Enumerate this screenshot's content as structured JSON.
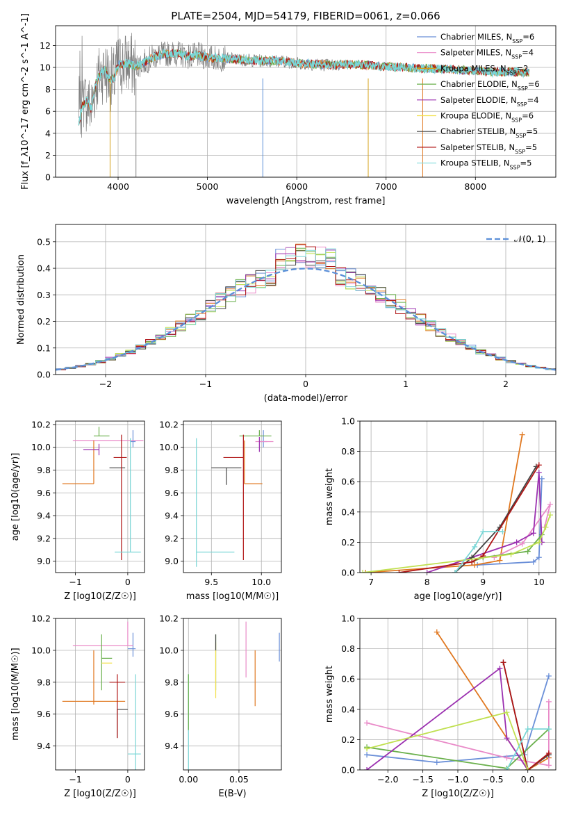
{
  "figure": {
    "title": "PLATE=2504, MJD=54179, FIBERID=0061, z=0.066"
  },
  "colors": {
    "Chabrier MILES": "#6a8fd8",
    "Salpeter MILES": "#e98ac8",
    "Kroupa MILES": "#d4a017",
    "Chabrier ELODIE": "#6ab04c",
    "Salpeter ELODIE": "#9b30b0",
    "Kroupa ELODIE": "#f2e04a",
    "Chabrier STELIB": "#444444",
    "Salpeter STELIB": "#b01515",
    "Kroupa STELIB": "#8fe0e0",
    "orange": "#e07820",
    "lime": "#c0e050",
    "data": "#808080",
    "cyan": "#7ad6d6",
    "gauss": "#5b8fd8"
  },
  "chart_data": [
    {
      "id": "spectrum",
      "type": "line",
      "xlabel": "wavelength [Angstrom, rest frame]",
      "ylabel": "Flux [f_λ10^-17 erg cm^-2 s^-1 A^-1]",
      "xlim": [
        3300,
        8900
      ],
      "ylim": [
        0,
        13.8
      ],
      "xticks": [
        4000,
        5000,
        6000,
        7000,
        8000
      ],
      "yticks": [
        0,
        2,
        4,
        6,
        8,
        10,
        12
      ],
      "legend_position": "right",
      "legend": [
        {
          "name": "Chabrier MILES",
          "nssp": "6"
        },
        {
          "name": "Salpeter MILES",
          "nssp": "4"
        },
        {
          "name": "Kroupa MILES",
          "nssp": "2"
        },
        {
          "name": "Chabrier ELODIE",
          "nssp": "6"
        },
        {
          "name": "Salpeter ELODIE",
          "nssp": "4"
        },
        {
          "name": "Kroupa ELODIE",
          "nssp": "6"
        },
        {
          "name": "Chabrier STELIB",
          "nssp": "5"
        },
        {
          "name": "Salpeter STELIB",
          "nssp": "5"
        },
        {
          "name": "Kroupa STELIB",
          "nssp": "5"
        }
      ],
      "continuum": {
        "x": [
          3560,
          3600,
          3650,
          3700,
          3750,
          3800,
          3850,
          3900,
          3950,
          4000,
          4100,
          4200,
          4300,
          4400,
          4500,
          4600,
          4700,
          4800,
          4900,
          5000,
          5200,
          5400,
          5600,
          5800,
          6000,
          6200,
          6400,
          6600,
          6800,
          7000,
          7200,
          7400,
          7600,
          7800,
          8000,
          8200,
          8400,
          8600
        ],
        "y": [
          4.8,
          6.5,
          7.0,
          6.2,
          8.5,
          9.4,
          9.8,
          9.0,
          8.9,
          10.2,
          10.4,
          10.1,
          10.5,
          11.0,
          11.2,
          11.3,
          11.2,
          11.0,
          11.1,
          10.9,
          10.8,
          10.7,
          10.6,
          10.6,
          10.4,
          10.3,
          10.2,
          10.3,
          10.2,
          10.1,
          10.0,
          9.9,
          9.9,
          9.8,
          9.7,
          9.6,
          9.6,
          9.5
        ]
      }
    },
    {
      "id": "residuals",
      "type": "line",
      "xlabel": "(data-model)/error",
      "ylabel": "Normed distribution",
      "xlim": [
        -2.5,
        2.5
      ],
      "ylim": [
        0,
        0.565
      ],
      "xticks": [
        -2,
        -1,
        0,
        1,
        2
      ],
      "yticks": [
        0.0,
        0.1,
        0.2,
        0.3,
        0.4,
        0.5
      ],
      "legend_position": "top-right",
      "gauss_label": "𝒩(0, 1)",
      "bin_width": 0.1,
      "bin_start": -2.5
    },
    {
      "id": "age-vs-z",
      "type": "scatter",
      "xlabel": "Z [log10(Z/Z☉)]",
      "ylabel": "age  [log10(age/yr)]",
      "xlim": [
        -1.38,
        0.32
      ],
      "ylim": [
        8.9,
        10.23
      ],
      "xticks": [
        -1,
        0
      ],
      "yticks": [
        9.0,
        9.2,
        9.4,
        9.6,
        9.8,
        10.0,
        10.2
      ],
      "series": [
        {
          "key": "Chabrier MILES",
          "x": 0.1,
          "y": 10.05,
          "xerr": [
            0.05,
            0.05
          ],
          "yerr": [
            0.05,
            0.1
          ]
        },
        {
          "key": "Salpeter MILES",
          "x": -0.2,
          "y": 10.06,
          "xerr": [
            0.85,
            0.5
          ],
          "yerr": [
            0.0,
            0.0
          ]
        },
        {
          "key": "orange",
          "x": -0.65,
          "y": 9.68,
          "xerr": [
            0.6,
            0.0
          ],
          "yerr": [
            0.0,
            0.38
          ]
        },
        {
          "key": "Chabrier ELODIE",
          "x": -0.55,
          "y": 10.1,
          "xerr": [
            0.1,
            0.2
          ],
          "yerr": [
            0.0,
            0.08
          ]
        },
        {
          "key": "Salpeter ELODIE",
          "x": -0.55,
          "y": 9.98,
          "xerr": [
            0.3,
            0.0
          ],
          "yerr": [
            0.05,
            0.05
          ]
        },
        {
          "key": "Chabrier STELIB",
          "x": -0.15,
          "y": 9.82,
          "xerr": [
            0.2,
            0.1
          ],
          "yerr": [
            0.0,
            0.0
          ]
        },
        {
          "key": "Salpeter STELIB",
          "x": -0.12,
          "y": 9.91,
          "xerr": [
            0.15,
            0.1
          ],
          "yerr": [
            0.9,
            0.2
          ]
        },
        {
          "key": "cyan",
          "x": 0.05,
          "y": 9.08,
          "xerr": [
            0.3,
            0.2
          ],
          "yerr": [
            0.0,
            1.0
          ]
        }
      ]
    },
    {
      "id": "age-vs-mass",
      "type": "scatter",
      "xlabel": "mass [log10(M/M☉)]",
      "ylabel": "",
      "xlim": [
        9.22,
        10.2
      ],
      "ylim": [
        8.9,
        10.23
      ],
      "xticks": [
        9.5,
        10.0
      ],
      "yticks": [
        9.0,
        9.2,
        9.4,
        9.6,
        9.8,
        10.0,
        10.2
      ],
      "series": [
        {
          "key": "Chabrier MILES",
          "x": 10.02,
          "y": 10.05,
          "xerr": [
            0.04,
            0.04
          ],
          "yerr": [
            0.05,
            0.1
          ]
        },
        {
          "key": "Salpeter MILES",
          "x": 10.02,
          "y": 10.05,
          "xerr": [
            0.08,
            0.1
          ],
          "yerr": [
            0.0,
            0.0
          ]
        },
        {
          "key": "orange",
          "x": 9.83,
          "y": 9.68,
          "xerr": [
            0.0,
            0.18
          ],
          "yerr": [
            0.0,
            0.38
          ]
        },
        {
          "key": "Chabrier ELODIE",
          "x": 9.98,
          "y": 10.1,
          "xerr": [
            0.2,
            0.12
          ],
          "yerr": [
            0.0,
            0.05
          ]
        },
        {
          "key": "Salpeter ELODIE",
          "x": 9.98,
          "y": 10.01,
          "xerr": [
            0.0,
            0.0
          ],
          "yerr": [
            0.05,
            0.08
          ]
        },
        {
          "key": "Chabrier STELIB",
          "x": 9.65,
          "y": 9.82,
          "xerr": [
            0.15,
            0.15
          ],
          "yerr": [
            0.15,
            0.0
          ]
        },
        {
          "key": "Salpeter STELIB",
          "x": 9.82,
          "y": 9.91,
          "xerr": [
            0.2,
            0.0
          ],
          "yerr": [
            0.9,
            0.2
          ]
        },
        {
          "key": "cyan",
          "x": 9.35,
          "y": 9.08,
          "xerr": [
            0.0,
            0.38
          ],
          "yerr": [
            0.13,
            1.0
          ]
        }
      ]
    },
    {
      "id": "weight-vs-age",
      "type": "line",
      "xlabel": "age  [log10(age/yr)]",
      "ylabel": "mass weight",
      "xlim": [
        6.8,
        10.3
      ],
      "ylim": [
        0,
        1.0
      ],
      "xticks": [
        7,
        8,
        9,
        10
      ],
      "yticks": [
        0.0,
        0.2,
        0.4,
        0.6,
        0.8,
        1.0
      ],
      "series": [
        {
          "key": "Chabrier MILES",
          "x": [
            8.9,
            9.9,
            10.0,
            10.05
          ],
          "y": [
            0.05,
            0.07,
            0.1,
            0.62
          ]
        },
        {
          "key": "orange",
          "x": [
            6.9,
            8.85,
            9.3,
            9.7
          ],
          "y": [
            0.0,
            0.05,
            0.08,
            0.91
          ]
        },
        {
          "key": "Salpeter MILES",
          "x": [
            9.2,
            9.7,
            10.2,
            10.1
          ],
          "y": [
            0.1,
            0.19,
            0.45,
            0.3
          ]
        },
        {
          "key": "Chabrier ELODIE",
          "x": [
            8.8,
            9.0,
            9.8,
            10.05
          ],
          "y": [
            0.07,
            0.1,
            0.14,
            0.25
          ]
        },
        {
          "key": "Salpeter ELODIE",
          "x": [
            8.0,
            9.6,
            9.9,
            10.0,
            10.05
          ],
          "y": [
            0.0,
            0.2,
            0.26,
            0.66,
            0.2
          ]
        },
        {
          "key": "Chabrier STELIB",
          "x": [
            8.5,
            8.8,
            9.3,
            9.95
          ],
          "y": [
            0.0,
            0.1,
            0.3,
            0.7
          ]
        },
        {
          "key": "Salpeter STELIB",
          "x": [
            7.5,
            8.8,
            9.0,
            10.0
          ],
          "y": [
            0.0,
            0.07,
            0.11,
            0.71
          ]
        },
        {
          "key": "lime",
          "x": [
            6.85,
            9.5,
            10.0,
            10.12,
            10.2
          ],
          "y": [
            0.0,
            0.12,
            0.2,
            0.3,
            0.38
          ]
        },
        {
          "key": "cyan",
          "x": [
            8.5,
            8.85,
            9.0,
            9.35
          ],
          "y": [
            0.0,
            0.17,
            0.27,
            0.27
          ]
        }
      ]
    },
    {
      "id": "mass-vs-z",
      "type": "scatter",
      "xlabel": "Z [log10(Z/Z☉)]",
      "ylabel": "mass [log10(M/M☉)]",
      "xlim": [
        -1.38,
        0.32
      ],
      "ylim": [
        9.25,
        10.2
      ],
      "xticks": [
        -1,
        0
      ],
      "yticks": [
        9.4,
        9.6,
        9.8,
        10.0,
        10.2
      ],
      "series": [
        {
          "key": "Chabrier MILES",
          "x": 0.1,
          "y": 10.01,
          "xerr": [
            0.1,
            0.05
          ],
          "yerr": [
            0.05,
            0.1
          ]
        },
        {
          "key": "Salpeter MILES",
          "x": 0.0,
          "y": 10.03,
          "xerr": [
            1.05,
            0.1
          ],
          "yerr": [
            0.0,
            0.15
          ]
        },
        {
          "key": "orange",
          "x": -0.65,
          "y": 9.68,
          "xerr": [
            0.6,
            0.6
          ],
          "yerr": [
            0.02,
            0.32
          ]
        },
        {
          "key": "Chabrier ELODIE",
          "x": -0.5,
          "y": 9.95,
          "xerr": [
            0.0,
            0.2
          ],
          "yerr": [
            0.2,
            0.15
          ]
        },
        {
          "key": "Kroupa ELODIE",
          "x": -0.5,
          "y": 9.92,
          "xerr": [
            0.0,
            0.2
          ],
          "yerr": [
            0.0,
            0.0
          ]
        },
        {
          "key": "Chabrier STELIB",
          "x": -0.2,
          "y": 9.63,
          "xerr": [
            0.0,
            0.2
          ],
          "yerr": [
            0.18,
            0.0
          ]
        },
        {
          "key": "Salpeter STELIB",
          "x": -0.2,
          "y": 9.8,
          "xerr": [
            0.15,
            0.15
          ],
          "yerr": [
            0.35,
            0.05
          ]
        },
        {
          "key": "cyan",
          "x": 0.15,
          "y": 9.35,
          "xerr": [
            0.15,
            0.1
          ],
          "yerr": [
            0.1,
            0.5
          ]
        }
      ]
    },
    {
      "id": "mass-vs-ebv",
      "type": "scatter",
      "xlabel": "E(B-V)",
      "ylabel": "",
      "xlim": [
        -0.005,
        0.092
      ],
      "ylim": [
        9.25,
        10.2
      ],
      "xticks": [
        0.0,
        0.05
      ],
      "yticks": [
        9.4,
        9.6,
        9.8,
        10.0,
        10.2
      ],
      "series": [
        {
          "key": "Chabrier MILES",
          "x": 0.09,
          "y": 10.03,
          "xerr": [
            0,
            0
          ],
          "yerr": [
            0.1,
            0.08
          ]
        },
        {
          "key": "Salpeter MILES",
          "x": 0.057,
          "y": 10.03,
          "xerr": [
            0,
            0
          ],
          "yerr": [
            0.2,
            0.15
          ]
        },
        {
          "key": "orange",
          "x": 0.066,
          "y": 9.83,
          "xerr": [
            0,
            0
          ],
          "yerr": [
            0.18,
            0.17
          ]
        },
        {
          "key": "Chabrier ELODIE",
          "x": 0.027,
          "y": 9.95,
          "xerr": [
            0,
            0
          ],
          "yerr": [
            0.2,
            0.15
          ]
        },
        {
          "key": "Kroupa ELODIE",
          "x": 0.027,
          "y": 9.9,
          "xerr": [
            0,
            0
          ],
          "yerr": [
            0.2,
            0.15
          ]
        },
        {
          "key": "Chabrier STELIB",
          "x": 0.027,
          "y": 10.05,
          "xerr": [
            0,
            0
          ],
          "yerr": [
            0.05,
            0.05
          ]
        },
        {
          "key": "cyan",
          "x": 0.0,
          "y": 9.6,
          "xerr": [
            0,
            0
          ],
          "yerr": [
            0.35,
            0.25
          ]
        },
        {
          "key": "Chabrier ELODIE",
          "x": 0.0,
          "y": 9.7,
          "xerr": [
            0,
            0
          ],
          "yerr": [
            0.2,
            0.15
          ]
        }
      ]
    },
    {
      "id": "weight-vs-z",
      "type": "line",
      "xlabel": "Z [log10(Z/Z☉)]",
      "ylabel": "mass weight",
      "xlim": [
        -2.4,
        0.4
      ],
      "ylim": [
        0,
        1.0
      ],
      "xticks": [
        -2.0,
        -1.5,
        -1.0,
        -0.5,
        0.0
      ],
      "yticks": [
        0.0,
        0.2,
        0.4,
        0.6,
        0.8,
        1.0
      ],
      "series": [
        {
          "key": "Chabrier MILES",
          "x": [
            -2.3,
            -1.3,
            -0.05,
            0.3
          ],
          "y": [
            0.1,
            0.05,
            0.1,
            0.62
          ]
        },
        {
          "key": "orange",
          "x": [
            -1.3,
            0.0,
            0.3
          ],
          "y": [
            0.91,
            0.0,
            0.08
          ]
        },
        {
          "key": "Salpeter MILES",
          "x": [
            -2.3,
            -0.3,
            0.3,
            0.3
          ],
          "y": [
            0.31,
            0.08,
            0.03,
            0.45
          ]
        },
        {
          "key": "Chabrier ELODIE",
          "x": [
            -2.3,
            -0.3,
            0.3
          ],
          "y": [
            0.15,
            0.01,
            0.27
          ]
        },
        {
          "key": "Salpeter ELODIE",
          "x": [
            -2.3,
            -0.4,
            -0.3,
            0.0
          ],
          "y": [
            0.0,
            0.67,
            0.21,
            0.0
          ]
        },
        {
          "key": "Chabrier STELIB",
          "x": [
            -0.35,
            0.0,
            0.3
          ],
          "y": [
            0.71,
            0.0,
            0.1
          ]
        },
        {
          "key": "Salpeter STELIB",
          "x": [
            -0.35,
            0.0,
            0.3
          ],
          "y": [
            0.71,
            0.0,
            0.11
          ]
        },
        {
          "key": "lime",
          "x": [
            -2.3,
            -0.3,
            0.0
          ],
          "y": [
            0.14,
            0.38,
            0.0
          ]
        },
        {
          "key": "cyan",
          "x": [
            -0.3,
            0.0,
            0.3
          ],
          "y": [
            0.0,
            0.27,
            0.27
          ]
        }
      ]
    }
  ]
}
